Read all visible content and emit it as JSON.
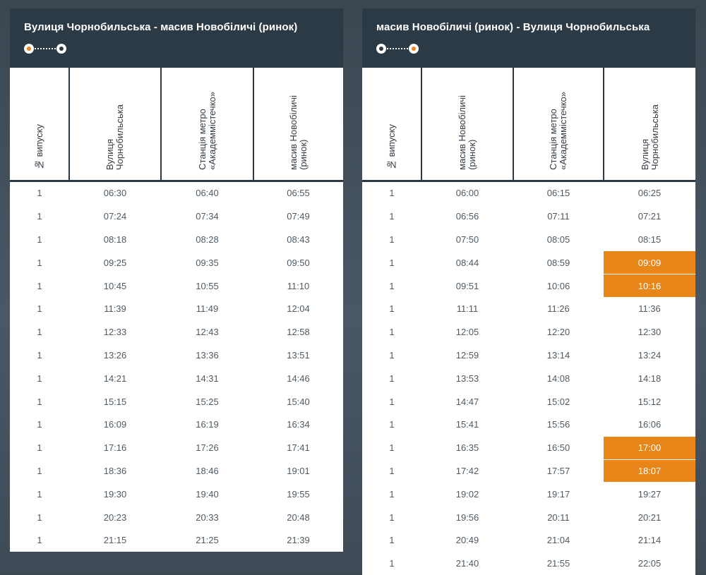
{
  "left": {
    "title": "Вулиця Чорнобильська - масив Новобіличі (ринок)",
    "headers": [
      "№ випуску",
      "Вулиця\nЧорнобильська",
      "Станція метро\n«Академмістечко»",
      "масив Новобіличі\n(ринок)"
    ],
    "rows": [
      [
        "1",
        "06:30",
        "06:40",
        "06:55"
      ],
      [
        "1",
        "07:24",
        "07:34",
        "07:49"
      ],
      [
        "1",
        "08:18",
        "08:28",
        "08:43"
      ],
      [
        "1",
        "09:25",
        "09:35",
        "09:50"
      ],
      [
        "1",
        "10:45",
        "10:55",
        "11:10"
      ],
      [
        "1",
        "11:39",
        "11:49",
        "12:04"
      ],
      [
        "1",
        "12:33",
        "12:43",
        "12:58"
      ],
      [
        "1",
        "13:26",
        "13:36",
        "13:51"
      ],
      [
        "1",
        "14:21",
        "14:31",
        "14:46"
      ],
      [
        "1",
        "15:15",
        "15:25",
        "15:40"
      ],
      [
        "1",
        "16:09",
        "16:19",
        "16:34"
      ],
      [
        "1",
        "17:16",
        "17:26",
        "17:41"
      ],
      [
        "1",
        "18:36",
        "18:46",
        "19:01"
      ],
      [
        "1",
        "19:30",
        "19:40",
        "19:55"
      ],
      [
        "1",
        "20:23",
        "20:33",
        "20:48"
      ],
      [
        "1",
        "21:15",
        "21:25",
        "21:39"
      ]
    ],
    "highlighted": []
  },
  "right": {
    "title": "масив Новобіличі (ринок) - Вулиця Чорнобильська",
    "headers": [
      "№ випуску",
      "масив Новобіличі\n(ринок)",
      "Станція метро\n«Академмістечко»",
      "Вулиця\nЧорнобильська"
    ],
    "rows": [
      [
        "1",
        "06:00",
        "06:15",
        "06:25"
      ],
      [
        "1",
        "06:56",
        "07:11",
        "07:21"
      ],
      [
        "1",
        "07:50",
        "08:05",
        "08:15"
      ],
      [
        "1",
        "08:44",
        "08:59",
        "09:09"
      ],
      [
        "1",
        "09:51",
        "10:06",
        "10:16"
      ],
      [
        "1",
        "11:11",
        "11:26",
        "11:36"
      ],
      [
        "1",
        "12:05",
        "12:20",
        "12:30"
      ],
      [
        "1",
        "12:59",
        "13:14",
        "13:24"
      ],
      [
        "1",
        "13:53",
        "14:08",
        "14:18"
      ],
      [
        "1",
        "14:47",
        "15:02",
        "15:12"
      ],
      [
        "1",
        "15:41",
        "15:56",
        "16:06"
      ],
      [
        "1",
        "16:35",
        "16:50",
        "17:00"
      ],
      [
        "1",
        "17:42",
        "17:57",
        "18:07"
      ],
      [
        "1",
        "19:02",
        "19:17",
        "19:27"
      ],
      [
        "1",
        "19:56",
        "20:11",
        "20:21"
      ],
      [
        "1",
        "20:49",
        "21:04",
        "21:14"
      ],
      [
        "1",
        "21:40",
        "21:55",
        "22:05"
      ]
    ],
    "highlighted": [
      [
        3,
        3
      ],
      [
        4,
        3
      ],
      [
        11,
        3
      ],
      [
        12,
        3
      ]
    ]
  },
  "colors": {
    "header_bg": "#2c3a46",
    "highlight": "#e8861a",
    "accent_dot": "#e8861a"
  },
  "icons": {
    "route": "route-dots-icon"
  }
}
